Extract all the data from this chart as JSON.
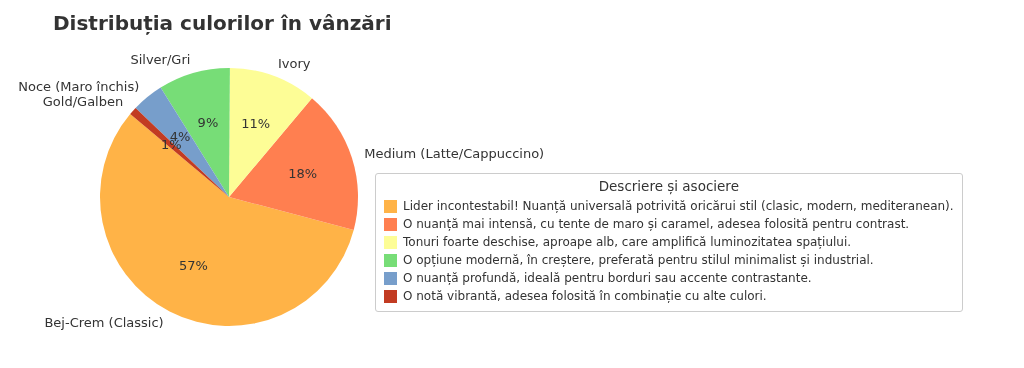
{
  "chart_data": {
    "type": "pie",
    "title": "Distribuția culorilor în vânzări",
    "legend_title": "Descriere și asociere",
    "categories": [
      "Bej-Crem (Classic)",
      "Medium (Latte/Cappuccino)",
      "Ivory",
      "Silver/Gri",
      "Noce (Maro închis)",
      "Gold/Galben"
    ],
    "values": [
      57,
      18,
      11,
      9,
      4,
      1
    ],
    "value_labels": [
      "57%",
      "18%",
      "11%",
      "9%",
      "4%",
      "1%"
    ],
    "colors": [
      "#ffb347",
      "#ff7f50",
      "#fdfd96",
      "#77dd77",
      "#779ecb",
      "#c23b22"
    ],
    "annotations": [
      "Lider incontestabil! Nuanță universală potrivită oricărui stil (clasic, modern, mediteranean).",
      "O nuanță mai intensă, cu tente de maro și caramel, adesea folosită pentru contrast.",
      "Tonuri foarte deschise, aproape alb, care amplifică luminozitatea spațiului.",
      "O opțiune modernă, în creștere, preferată pentru stilul minimalist și industrial.",
      "O nuanță profundă, ideală pentru borduri sau accente contrastante.",
      "O notă vibrantă, adesea folosită în combinație cu alte culori."
    ]
  }
}
